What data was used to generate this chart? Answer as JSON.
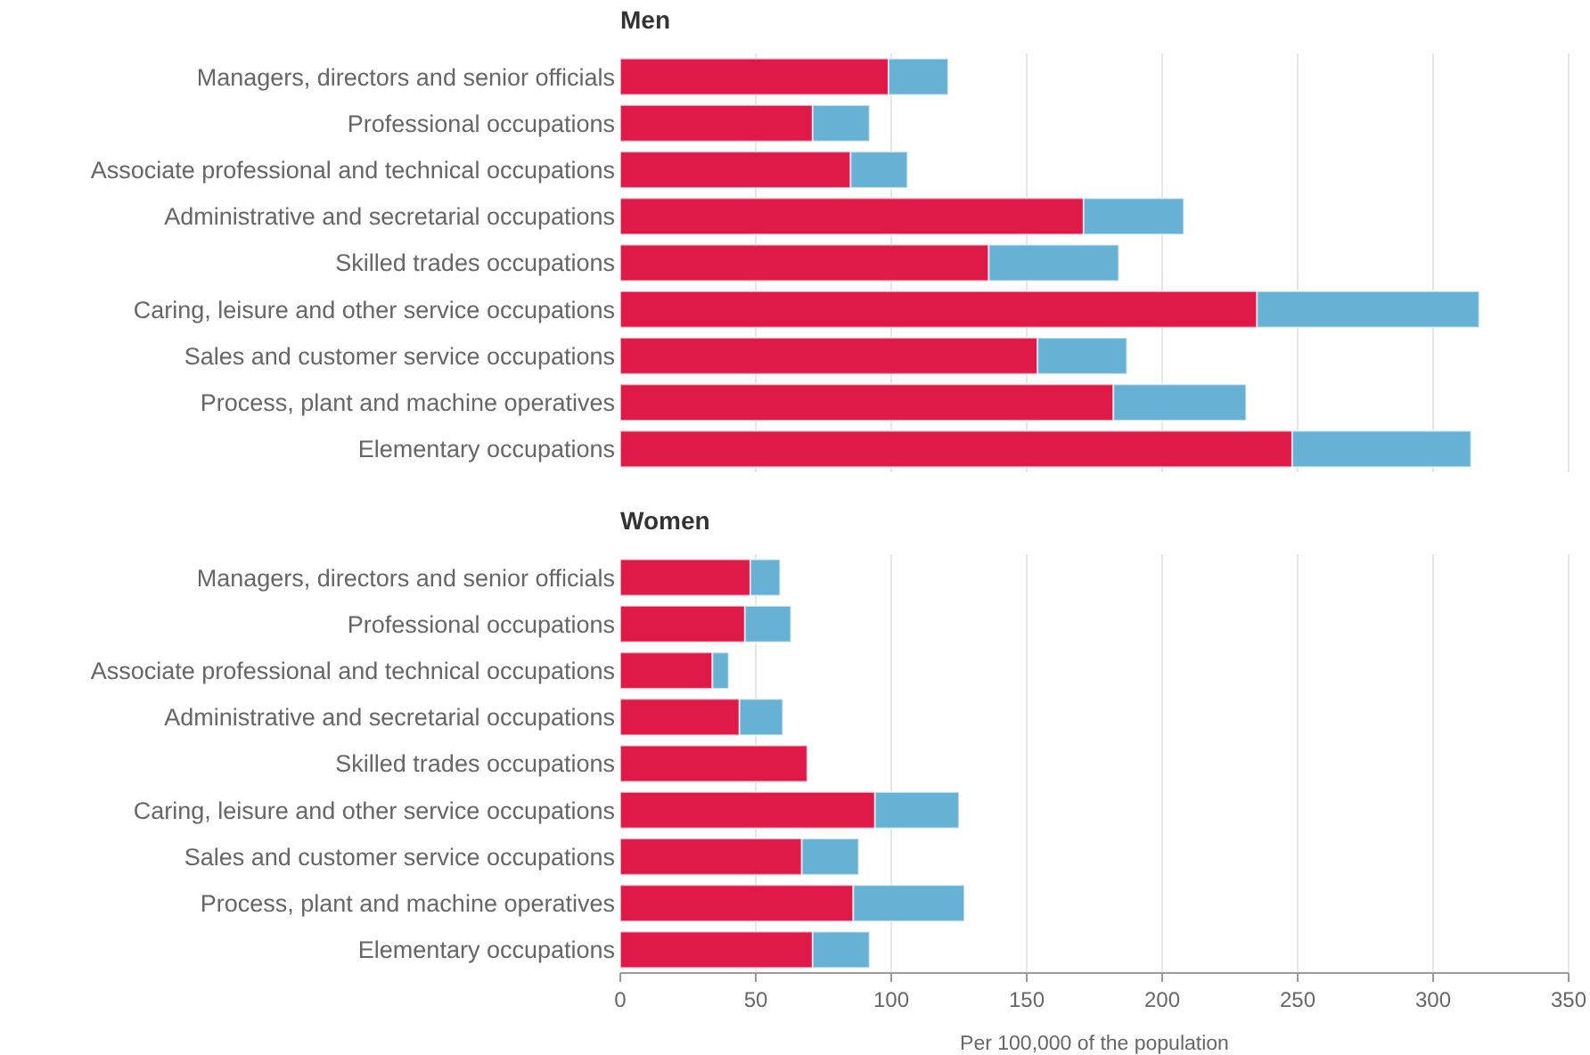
{
  "chart_data": [
    {
      "type": "bar",
      "title": "Men",
      "orientation": "horizontal",
      "stacked": true,
      "categories": [
        "Managers, directors and senior officials",
        "Professional occupations",
        "Associate professional and technical occupations",
        "Administrative and secretarial occupations",
        "Skilled trades occupations",
        "Caring, leisure and other service occupations",
        "Sales and customer service occupations",
        "Process, plant and machine operatives",
        "Elementary occupations"
      ],
      "series": [
        {
          "color": "#e01a48",
          "values": [
            99,
            71,
            85,
            171,
            136,
            235,
            154,
            182,
            248
          ]
        },
        {
          "color": "#67b2d4",
          "values": [
            22,
            21,
            21,
            37,
            48,
            82,
            33,
            49,
            66
          ]
        }
      ],
      "xlim": [
        0,
        350
      ],
      "xticks": [
        0,
        50,
        100,
        150,
        200,
        250,
        300,
        350
      ],
      "grid": "x",
      "tick_labels": "y"
    },
    {
      "type": "bar",
      "title": "Women",
      "orientation": "horizontal",
      "stacked": true,
      "xlabel": "Per 100,000 of the population",
      "categories": [
        "Managers, directors and senior officials",
        "Professional occupations",
        "Associate professional and technical occupations",
        "Administrative and secretarial occupations",
        "Skilled trades occupations",
        "Caring, leisure and other service occupations",
        "Sales and customer service occupations",
        "Process, plant and machine operatives",
        "Elementary occupations"
      ],
      "series": [
        {
          "color": "#e01a48",
          "values": [
            48,
            46,
            34,
            44,
            69,
            94,
            67,
            86,
            71
          ]
        },
        {
          "color": "#67b2d4",
          "values": [
            11,
            17,
            6,
            16,
            null,
            31,
            21,
            41,
            21
          ]
        }
      ],
      "xlim": [
        0,
        350
      ],
      "xticks": [
        0,
        50,
        100,
        150,
        200,
        250,
        300,
        350
      ],
      "grid": "x"
    }
  ]
}
